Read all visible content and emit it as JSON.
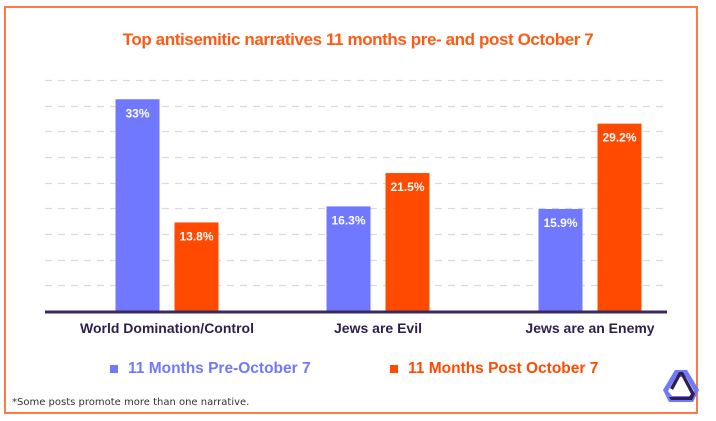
{
  "chart_data": {
    "type": "bar",
    "title": "Top antisemitic narratives 11 months pre- and post October 7",
    "xlabel": "",
    "ylabel": "",
    "categories": [
      "World Domination/Control",
      "Jews are Evil",
      "Jews are an Enemy"
    ],
    "series": [
      {
        "name": "11 Months Pre-October 7",
        "color": "#6f78ff",
        "values": [
          33,
          16.3,
          15.9
        ],
        "labels": [
          "33%",
          "16.3%",
          "15.9%"
        ]
      },
      {
        "name": "11 Months Post October 7",
        "color": "#ff4a00",
        "values": [
          13.8,
          21.5,
          29.2
        ],
        "labels": [
          "13.8%",
          "21.5%",
          "29.2%"
        ]
      }
    ],
    "ylim": [
      0,
      36
    ],
    "grid": true,
    "grid_step": 4,
    "legend_position": "bottom-center",
    "footnote": "*Some posts promote more than one narrative."
  },
  "colors": {
    "title": "#ff5a14",
    "axis": "#3a2a5c",
    "grid": "#d9d9e6",
    "frame": "#ff7a45",
    "category_label": "#2e1f4f",
    "logo_light": "#6f78ff",
    "logo_dark": "#2e1f4f"
  },
  "logo": {
    "icon": "triangle-hexagon-logo-icon"
  }
}
